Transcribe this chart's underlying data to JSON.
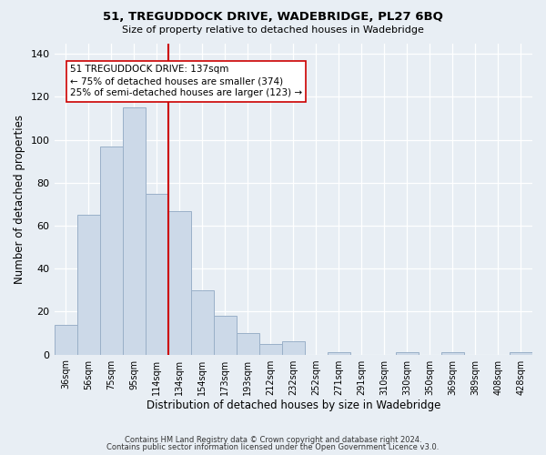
{
  "title": "51, TREGUDDOCK DRIVE, WADEBRIDGE, PL27 6BQ",
  "subtitle": "Size of property relative to detached houses in Wadebridge",
  "xlabel": "Distribution of detached houses by size in Wadebridge",
  "ylabel": "Number of detached properties",
  "footer_line1": "Contains HM Land Registry data © Crown copyright and database right 2024.",
  "footer_line2": "Contains public sector information licensed under the Open Government Licence v3.0.",
  "bar_labels": [
    "36sqm",
    "56sqm",
    "75sqm",
    "95sqm",
    "114sqm",
    "134sqm",
    "154sqm",
    "173sqm",
    "193sqm",
    "212sqm",
    "232sqm",
    "252sqm",
    "271sqm",
    "291sqm",
    "310sqm",
    "330sqm",
    "350sqm",
    "369sqm",
    "389sqm",
    "408sqm",
    "428sqm"
  ],
  "bar_heights": [
    14,
    65,
    97,
    115,
    75,
    67,
    30,
    18,
    10,
    5,
    6,
    0,
    1,
    0,
    0,
    1,
    0,
    1,
    0,
    0,
    1
  ],
  "bar_color": "#ccd9e8",
  "bar_edge_color": "#9ab0c8",
  "vline_x": 4.5,
  "vline_color": "#cc0000",
  "ylim": [
    0,
    145
  ],
  "yticks": [
    0,
    20,
    40,
    60,
    80,
    100,
    120,
    140
  ],
  "annotation_title": "51 TREGUDDOCK DRIVE: 137sqm",
  "annotation_line1": "← 75% of detached houses are smaller (374)",
  "annotation_line2": "25% of semi-detached houses are larger (123) →",
  "annotation_box_color": "#ffffff",
  "annotation_box_edge": "#cc0000",
  "bg_color": "#e8eef4"
}
